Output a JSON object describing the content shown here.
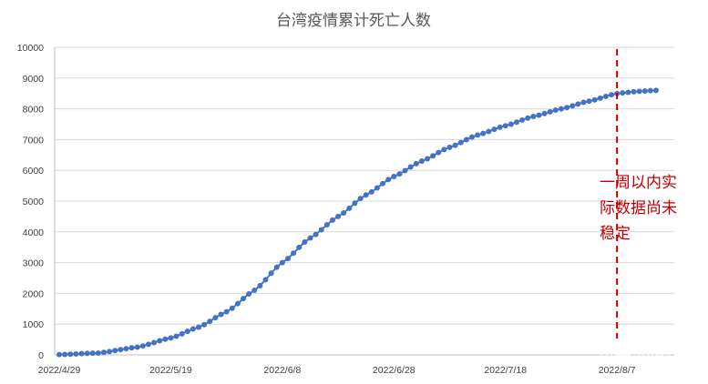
{
  "chart_data": {
    "type": "line",
    "title": "台湾疫情累计死亡人数",
    "xlabel": "",
    "ylabel": "",
    "x_start": "2022-04-29",
    "x_end": "2022-08-14",
    "x_tick_labels": [
      "2022/4/29",
      "2022/5/19",
      "2022/6/8",
      "2022/6/28",
      "2022/7/18",
      "2022/8/7"
    ],
    "ylim": [
      0,
      10000
    ],
    "y_ticks": [
      0,
      1000,
      2000,
      3000,
      4000,
      5000,
      6000,
      7000,
      8000,
      9000,
      10000
    ],
    "grid": true,
    "legend": "none",
    "series": [
      {
        "color": "#4472c4",
        "markers": "circle",
        "values": [
          [
            "2022-04-29",
            10
          ],
          [
            "2022-05-06",
            60
          ],
          [
            "2022-05-13",
            250
          ],
          [
            "2022-05-19",
            550
          ],
          [
            "2022-05-24",
            900
          ],
          [
            "2022-05-29",
            1400
          ],
          [
            "2022-06-03",
            2100
          ],
          [
            "2022-06-08",
            3000
          ],
          [
            "2022-06-13",
            3800
          ],
          [
            "2022-06-18",
            4500
          ],
          [
            "2022-06-23",
            5200
          ],
          [
            "2022-06-28",
            5800
          ],
          [
            "2022-07-03",
            6300
          ],
          [
            "2022-07-08",
            6750
          ],
          [
            "2022-07-13",
            7150
          ],
          [
            "2022-07-18",
            7450
          ],
          [
            "2022-07-23",
            7750
          ],
          [
            "2022-07-28",
            8000
          ],
          [
            "2022-08-02",
            8250
          ],
          [
            "2022-08-07",
            8500
          ],
          [
            "2022-08-11",
            8570
          ],
          [
            "2022-08-14",
            8600
          ]
        ]
      }
    ],
    "reference_line": {
      "x": "2022-08-07",
      "color": "#c00000",
      "style": "dashed"
    },
    "annotation": {
      "lines": [
        "一周以内实",
        "际数据尚未",
        "稳定"
      ],
      "color": "#c00000"
    }
  },
  "watermark": "知乎 @桓温"
}
